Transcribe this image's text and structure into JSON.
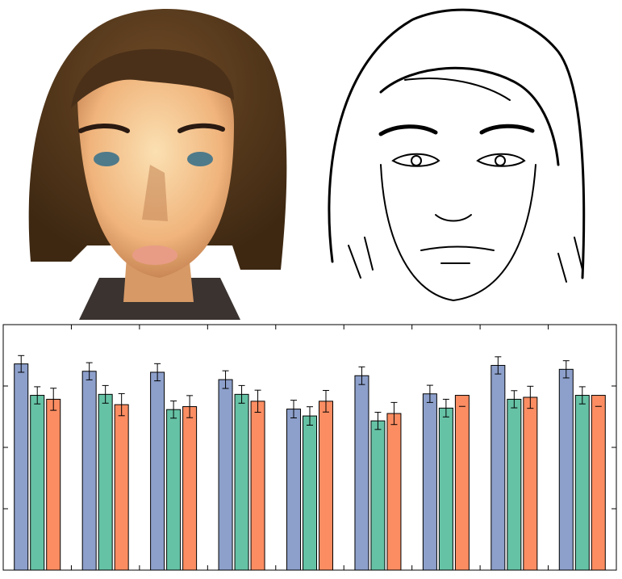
{
  "images": [
    {
      "icon": "painted-face-portrait-icon"
    },
    {
      "icon": "line-sketch-portrait-icon"
    }
  ],
  "colors": {
    "series_blue": "#8da0cb",
    "series_green": "#66c2a5",
    "series_orange": "#fc8d62",
    "hair": "#5a3a1c",
    "skin": "#f2c58f"
  },
  "chart_data": {
    "type": "bar",
    "title": "",
    "xlabel": "",
    "ylabel": "",
    "categories": [
      "",
      "",
      "",
      "",
      "",
      "",
      "",
      "",
      ""
    ],
    "ylim": [
      0,
      1
    ],
    "grid": false,
    "legend": "none",
    "series": [
      {
        "values": [
          0.84,
          0.81,
          0.806,
          0.776,
          0.656,
          0.792,
          0.718,
          0.834,
          0.818
        ],
        "errors": [
          0.068,
          0.07,
          0.07,
          0.072,
          0.072,
          0.072,
          0.07,
          0.07,
          0.07
        ],
        "color": "#8da0cb"
      },
      {
        "values": [
          0.712,
          0.716,
          0.654,
          0.716,
          0.628,
          0.608,
          0.66,
          0.696,
          0.712
        ],
        "errors": [
          0.07,
          0.072,
          0.07,
          0.072,
          0.075,
          0.07,
          0.072,
          0.07,
          0.07
        ],
        "color": "#66c2a5"
      },
      {
        "values": [
          0.696,
          0.674,
          0.666,
          0.688,
          0.688,
          0.638,
          0.712,
          0.704,
          0.712
        ],
        "errors": [
          0.09,
          0.09,
          0.09,
          0.09,
          0.088,
          0.09,
          0.0,
          0.09,
          0.0
        ],
        "color": "#fc8d62"
      }
    ]
  }
}
